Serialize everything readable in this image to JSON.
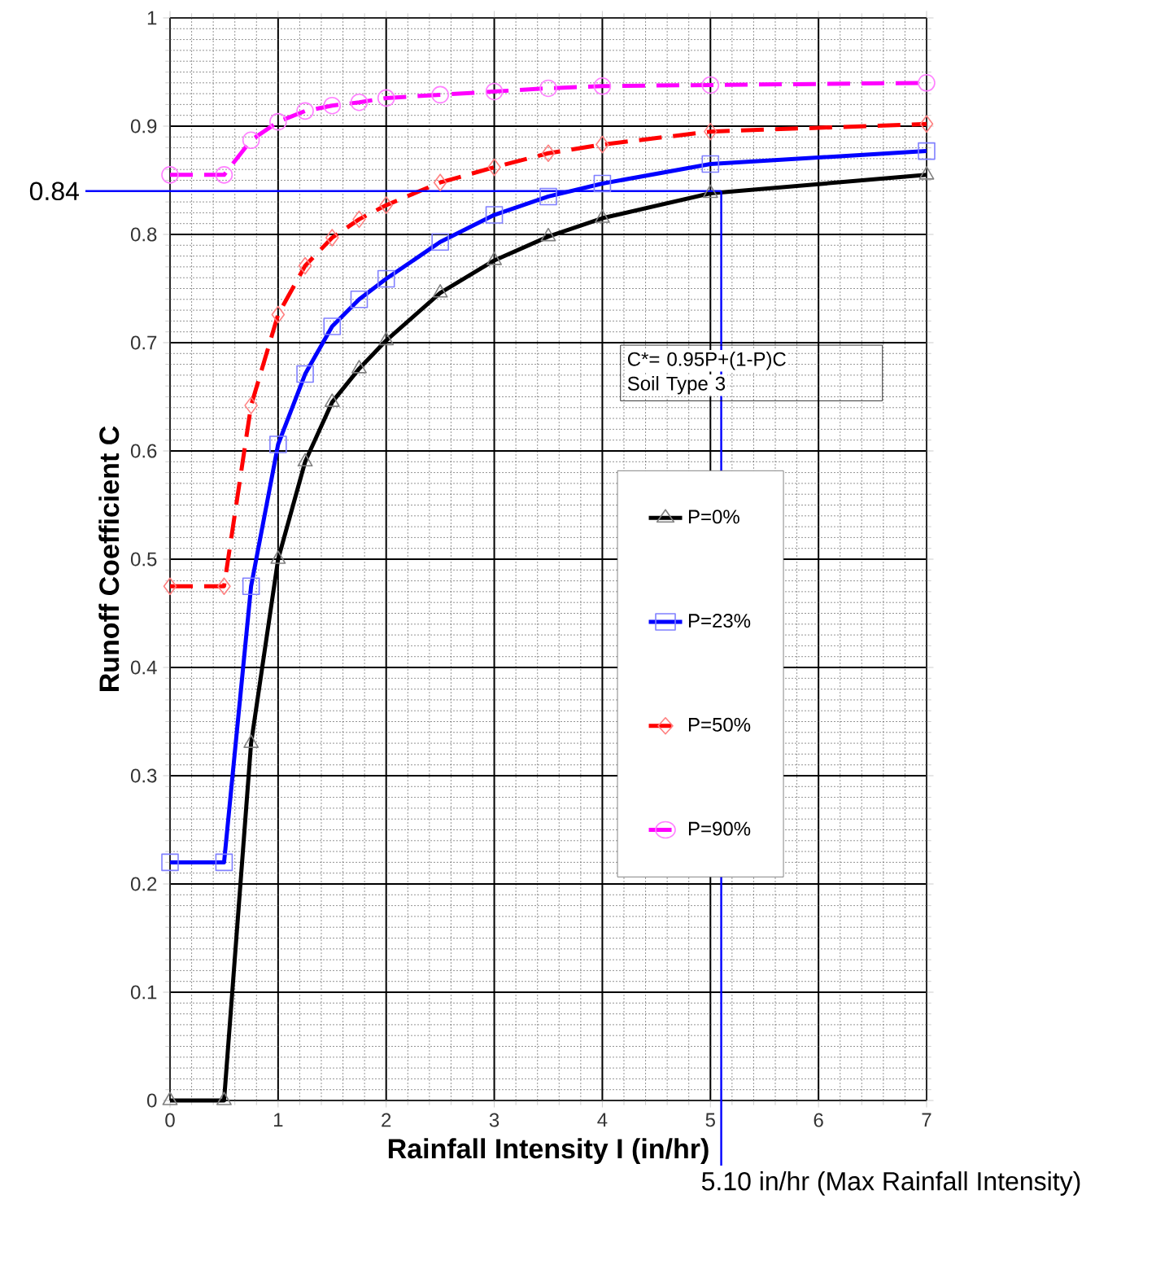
{
  "chart_data": {
    "type": "line",
    "xlabel": "Rainfall Intensity I (in/hr)",
    "ylabel": "Runoff Coefficient C",
    "x": [
      0,
      0.5,
      0.75,
      1,
      1.25,
      1.5,
      1.75,
      2,
      2.5,
      3,
      3.5,
      4,
      5,
      7
    ],
    "series": [
      {
        "name": "P=0%",
        "color": "#000000",
        "marker": "triangle",
        "line_style": "solid",
        "values": [
          0,
          0,
          0.33,
          0.5,
          0.59,
          0.645,
          0.676,
          0.702,
          0.746,
          0.776,
          0.798,
          0.815,
          0.838,
          0.855
        ]
      },
      {
        "name": "P=23%",
        "color": "#0000ff",
        "marker": "square",
        "line_style": "solid",
        "values": [
          0.22,
          0.22,
          0.475,
          0.606,
          0.671,
          0.715,
          0.74,
          0.759,
          0.793,
          0.818,
          0.835,
          0.847,
          0.865,
          0.877
        ]
      },
      {
        "name": "P=50%",
        "color": "#ff0000",
        "marker": "diamond",
        "line_style": "dashed",
        "values": [
          0.475,
          0.475,
          0.642,
          0.726,
          0.771,
          0.797,
          0.814,
          0.827,
          0.848,
          0.862,
          0.875,
          0.883,
          0.895,
          0.902
        ]
      },
      {
        "name": "P=90%",
        "color": "#ff00ff",
        "marker": "circle",
        "line_style": "dashed",
        "values": [
          0.855,
          0.855,
          0.887,
          0.904,
          0.914,
          0.919,
          0.922,
          0.926,
          0.929,
          0.932,
          0.935,
          0.937,
          0.938,
          0.94
        ]
      }
    ],
    "xlim": [
      0,
      7
    ],
    "xticks": [
      0,
      1,
      2,
      3,
      4,
      5,
      6,
      7
    ],
    "ylim": [
      0,
      1
    ],
    "yticks": [
      0,
      0.1,
      0.2,
      0.3,
      0.4,
      0.5,
      0.6,
      0.7,
      0.8,
      0.9,
      1
    ],
    "grid": true,
    "legend": "right",
    "ref_lines": [
      {
        "axis": "y",
        "value": 0.84,
        "label": "0.84",
        "color": "#0000ff"
      },
      {
        "axis": "x",
        "value": 5.1,
        "label": "5.10 in/hr (Max Rainfall Intensity)",
        "color": "#0000ff"
      }
    ],
    "annotations": [
      "C*= 0.95P+(1-P)C",
      "Soil Type 3"
    ]
  }
}
